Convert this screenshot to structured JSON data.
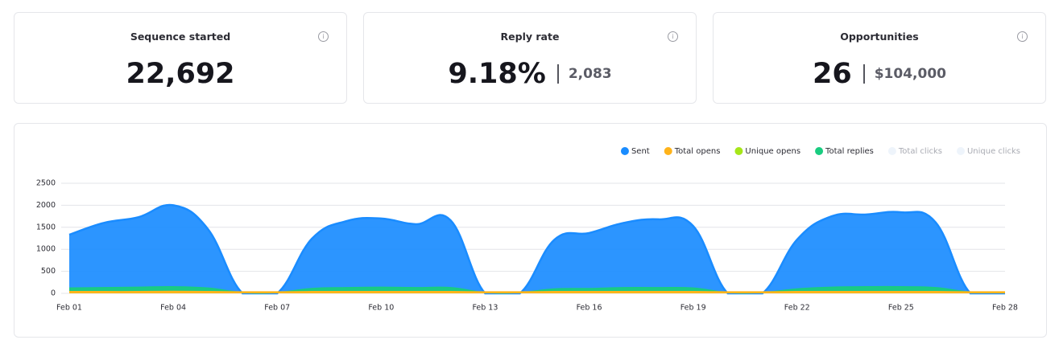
{
  "stats": [
    {
      "title": "Sequence started",
      "value": "22,692"
    },
    {
      "title": "Reply rate",
      "value": "9.18%",
      "secondary": "2,083"
    },
    {
      "title": "Opportunities",
      "value": "26",
      "secondary": "$104,000"
    }
  ],
  "chart_data": {
    "type": "area",
    "categories": [
      "Feb 01",
      null,
      null,
      "Feb 04",
      null,
      null,
      "Feb 07",
      null,
      null,
      "Feb 10",
      null,
      null,
      "Feb 13",
      null,
      null,
      "Feb 16",
      null,
      null,
      "Feb 19",
      null,
      null,
      "Feb 22",
      null,
      null,
      "Feb 25",
      null,
      null,
      "Feb 28"
    ],
    "series": [
      {
        "name": "Sent",
        "color": "#1a8cff",
        "values": [
          1330,
          1600,
          1730,
          2000,
          1460,
          0,
          0,
          1240,
          1640,
          1700,
          1570,
          1660,
          0,
          0,
          1220,
          1370,
          1600,
          1680,
          1530,
          0,
          0,
          1220,
          1750,
          1790,
          1840,
          1610,
          0,
          0
        ]
      },
      {
        "name": "Total opens",
        "color": "#ffb31a",
        "values": [
          40,
          40,
          40,
          45,
          40,
          35,
          35,
          40,
          40,
          40,
          40,
          40,
          35,
          35,
          40,
          40,
          40,
          40,
          40,
          35,
          35,
          40,
          40,
          40,
          40,
          40,
          35,
          35
        ]
      },
      {
        "name": "Unique opens",
        "color": "#a6e619",
        "values": [
          35,
          35,
          35,
          40,
          35,
          30,
          30,
          35,
          35,
          35,
          35,
          35,
          30,
          30,
          35,
          35,
          35,
          35,
          35,
          30,
          30,
          35,
          35,
          35,
          35,
          35,
          30,
          30
        ]
      },
      {
        "name": "Total replies",
        "color": "#19cc80",
        "values": [
          120,
          130,
          140,
          150,
          120,
          20,
          20,
          110,
          130,
          140,
          130,
          130,
          20,
          20,
          100,
          110,
          130,
          130,
          120,
          20,
          20,
          100,
          140,
          150,
          150,
          130,
          30,
          30
        ]
      }
    ],
    "inactive_series": [
      {
        "name": "Total clicks",
        "color": "#eef4fb"
      },
      {
        "name": "Unique clicks",
        "color": "#eef4fb"
      }
    ],
    "ylim": [
      0,
      2500
    ],
    "yticks": [
      0,
      500,
      1000,
      1500,
      2000,
      2500
    ],
    "grid": true,
    "legend": "top-right"
  }
}
